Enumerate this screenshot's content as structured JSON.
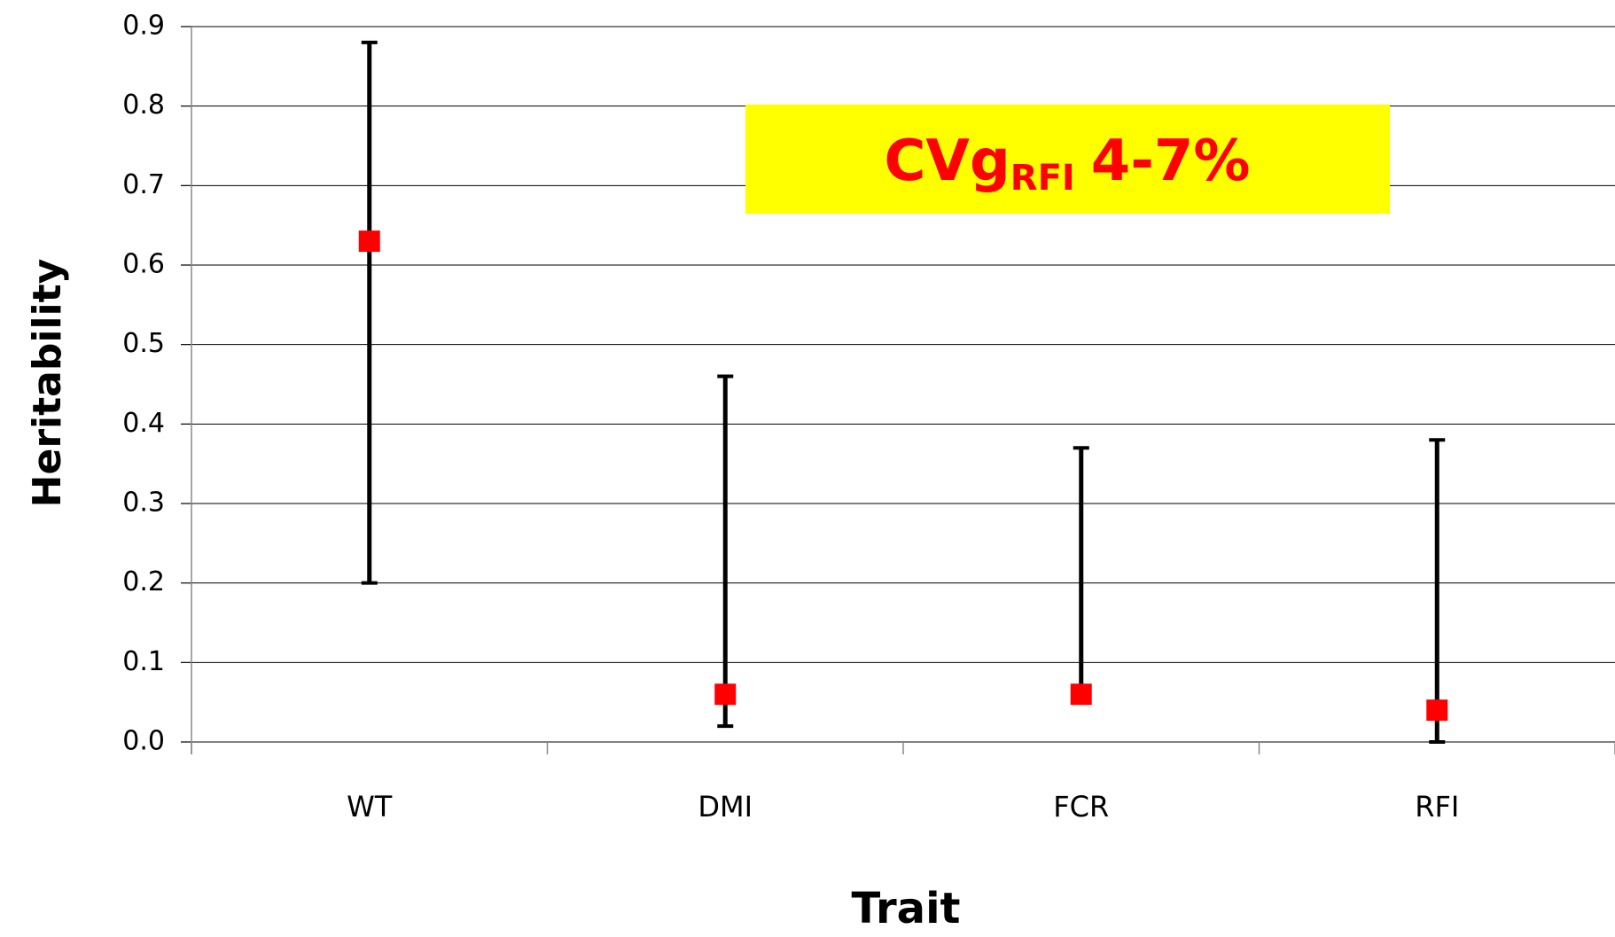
{
  "chart_data": {
    "type": "errorbar",
    "x_label": "Trait",
    "y_label": "Heritability",
    "categories": [
      "WT",
      "DMI",
      "FCR",
      "RFI"
    ],
    "series": [
      {
        "color": "#ff0000",
        "values": [
          0.63,
          0.06,
          0.06,
          0.04
        ],
        "low": [
          0.2,
          0.02,
          0.06,
          0.0
        ],
        "high": [
          0.88,
          0.46,
          0.37,
          0.38
        ]
      }
    ],
    "ylim": [
      0,
      0.9
    ],
    "yticks": [
      {
        "value": 0,
        "label": "0.0"
      },
      0.1,
      0.2,
      0.3,
      0.4,
      0.5,
      0.6,
      0.7,
      0.8,
      0.9
    ],
    "grid": true,
    "annotation": {
      "text": "CVg",
      "subscript": "RFI",
      "suffix": "4-7%",
      "background": "#ffff00"
    }
  }
}
